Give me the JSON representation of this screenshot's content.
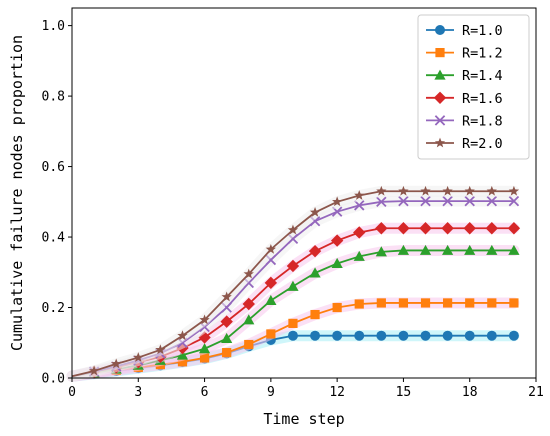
{
  "chart_data": {
    "type": "line",
    "title": "",
    "xlabel": "Time step",
    "ylabel": "Cumulative failure nodes proportion",
    "xlim": [
      0,
      21
    ],
    "ylim": [
      0,
      1.05
    ],
    "xticks": [
      0,
      3,
      6,
      9,
      12,
      15,
      18,
      21
    ],
    "yticks": [
      0.0,
      0.2,
      0.4,
      0.6,
      0.8,
      1.0
    ],
    "xtick_labels": [
      "0",
      "3",
      "6",
      "9",
      "12",
      "15",
      "18",
      "21"
    ],
    "ytick_labels": [
      "0.0",
      "0.2",
      "0.4",
      "0.6",
      "0.8",
      "1.0"
    ],
    "grid": false,
    "legend_position": "top-right",
    "x": [
      0,
      1,
      2,
      3,
      4,
      5,
      6,
      7,
      8,
      9,
      10,
      11,
      12,
      13,
      14,
      15,
      16,
      17,
      18,
      19,
      20
    ],
    "series": [
      {
        "name": "R=1.0",
        "color": "#1f77b4",
        "marker": "circle",
        "values": [
          0.005,
          0.012,
          0.02,
          0.028,
          0.036,
          0.045,
          0.055,
          0.07,
          0.09,
          0.108,
          0.12,
          0.12,
          0.12,
          0.12,
          0.12,
          0.12,
          0.12,
          0.12,
          0.12,
          0.12,
          0.12
        ]
      },
      {
        "name": "R=1.2",
        "color": "#ff7f0e",
        "marker": "square",
        "values": [
          0.005,
          0.013,
          0.022,
          0.03,
          0.038,
          0.046,
          0.057,
          0.072,
          0.095,
          0.125,
          0.155,
          0.18,
          0.2,
          0.21,
          0.213,
          0.213,
          0.213,
          0.213,
          0.213,
          0.213,
          0.213
        ]
      },
      {
        "name": "R=1.4",
        "color": "#2ca02c",
        "marker": "triangle",
        "values": [
          0.005,
          0.015,
          0.025,
          0.036,
          0.05,
          0.065,
          0.083,
          0.112,
          0.165,
          0.22,
          0.26,
          0.298,
          0.325,
          0.345,
          0.358,
          0.362,
          0.362,
          0.362,
          0.362,
          0.362,
          0.362
        ]
      },
      {
        "name": "R=1.6",
        "color": "#d62728",
        "marker": "diamond",
        "values": [
          0.005,
          0.018,
          0.03,
          0.045,
          0.06,
          0.085,
          0.115,
          0.16,
          0.21,
          0.27,
          0.318,
          0.36,
          0.39,
          0.413,
          0.425,
          0.425,
          0.425,
          0.425,
          0.425,
          0.425,
          0.425
        ]
      },
      {
        "name": "R=1.8",
        "color": "#9467bd",
        "marker": "x",
        "values": [
          0.005,
          0.018,
          0.033,
          0.05,
          0.07,
          0.1,
          0.145,
          0.2,
          0.27,
          0.335,
          0.395,
          0.445,
          0.472,
          0.49,
          0.5,
          0.502,
          0.502,
          0.502,
          0.502,
          0.502,
          0.502
        ]
      },
      {
        "name": "R=2.0",
        "color": "#8c564b",
        "marker": "star",
        "values": [
          0.005,
          0.02,
          0.04,
          0.058,
          0.08,
          0.12,
          0.165,
          0.23,
          0.295,
          0.365,
          0.42,
          0.47,
          0.5,
          0.518,
          0.53,
          0.53,
          0.53,
          0.53,
          0.53,
          0.53,
          0.53
        ]
      }
    ]
  }
}
